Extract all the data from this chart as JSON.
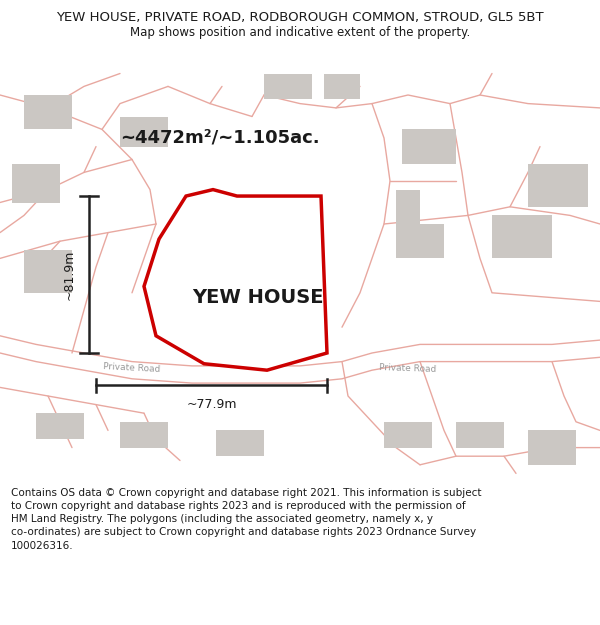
{
  "title_line1": "YEW HOUSE, PRIVATE ROAD, RODBOROUGH COMMON, STROUD, GL5 5BT",
  "title_line2": "Map shows position and indicative extent of the property.",
  "area_label": "~4472m²/~1.105ac.",
  "property_label": "YEW HOUSE",
  "dim_height": "~81.9m",
  "dim_width": "~77.9m",
  "road_label_left": "Private Road",
  "road_label_right": "Private Road",
  "footer_text": "Contains OS data © Crown copyright and database right 2021. This information is subject\nto Crown copyright and database rights 2023 and is reproduced with the permission of\nHM Land Registry. The polygons (including the associated geometry, namely x, y\nco-ordinates) are subject to Crown copyright and database rights 2023 Ordnance Survey\n100026316.",
  "map_bg_color": "#f2ede9",
  "road_color": "#e8a8a0",
  "building_color": "#cbc7c3",
  "property_fill_color": "#ffffff",
  "property_outline_color": "#cc0000",
  "dim_line_color": "#222222",
  "text_color": "#1a1a1a",
  "road_label_color": "#999999",
  "figsize": [
    6.0,
    6.25
  ],
  "dpi": 100
}
